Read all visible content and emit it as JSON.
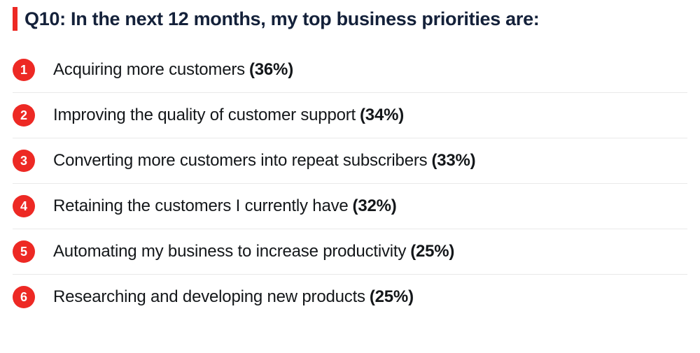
{
  "colors": {
    "accent": "#ed2924",
    "title": "#14213a",
    "text": "#14171a",
    "badge_bg": "#ed2924",
    "badge_text": "#ffffff",
    "divider": "#e9e9e9",
    "background": "#ffffff"
  },
  "title": "Q10: In the next 12 months, my top business priorities are:",
  "typography": {
    "title_fontsize": 27,
    "title_weight": 700,
    "item_fontsize": 24,
    "item_weight": 400,
    "pct_weight": 700,
    "badge_fontsize": 18,
    "badge_weight": 700
  },
  "accent_bar": {
    "width": 7,
    "height": 34
  },
  "badge": {
    "size": 32
  },
  "items": [
    {
      "rank": "1",
      "label": "Acquiring more customers",
      "pct": "(36%)"
    },
    {
      "rank": "2",
      "label": "Improving the quality of customer support",
      "pct": "(34%)"
    },
    {
      "rank": "3",
      "label": "Converting more customers into repeat subscribers",
      "pct": "(33%)"
    },
    {
      "rank": "4",
      "label": "Retaining the customers I currently have",
      "pct": "(32%)"
    },
    {
      "rank": "5",
      "label": "Automating my business to increase productivity",
      "pct": "(25%)"
    },
    {
      "rank": "6",
      "label": "Researching and developing new products",
      "pct": "(25%)"
    }
  ]
}
